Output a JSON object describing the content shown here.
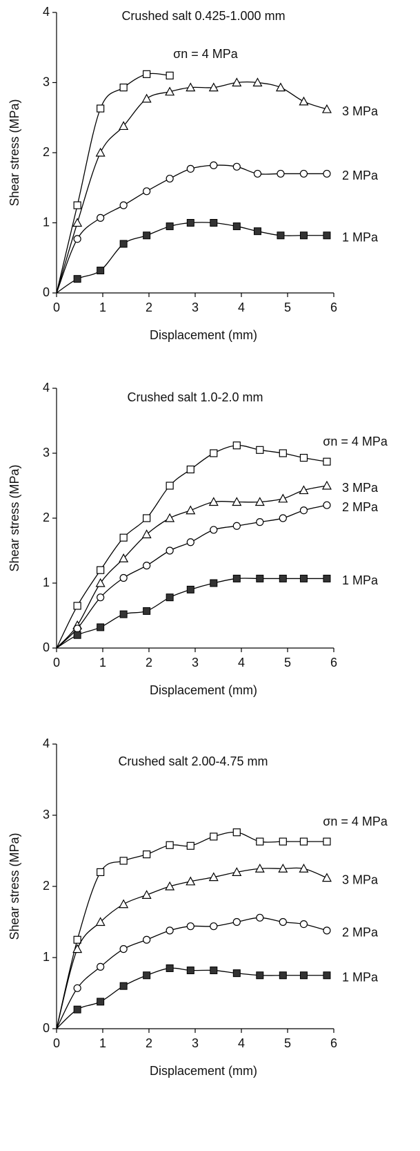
{
  "chart_data": [
    {
      "type": "line",
      "title": "Crushed salt 0.425-1.000 mm",
      "xlabel": "Displacement (mm)",
      "ylabel": "Shear stress (MPa)",
      "x": [
        0,
        0.45,
        0.95,
        1.45,
        1.95,
        2.45,
        2.9,
        3.4,
        3.9,
        4.35,
        4.85,
        5.35,
        5.85
      ],
      "xlim": [
        0,
        6
      ],
      "xticks": [
        0,
        1,
        2,
        3,
        4,
        5,
        6
      ],
      "ylim": [
        0,
        4
      ],
      "yticks": [
        0,
        1,
        2,
        3,
        4
      ],
      "series": [
        {
          "name": "σn = 4 MPa",
          "marker": "square-open",
          "color": "#000000",
          "values": [
            0,
            1.25,
            2.63,
            2.93,
            3.12,
            3.1,
            null,
            null,
            null,
            null,
            null,
            null,
            null
          ]
        },
        {
          "name": "3 MPa",
          "marker": "triangle-open",
          "color": "#000000",
          "values": [
            0,
            1.0,
            2.0,
            2.38,
            2.77,
            2.87,
            2.93,
            2.93,
            3.0,
            3.0,
            2.93,
            2.73,
            2.62
          ]
        },
        {
          "name": "2 MPa",
          "marker": "circle-open",
          "color": "#000000",
          "values": [
            0,
            0.77,
            1.07,
            1.25,
            1.45,
            1.63,
            1.77,
            1.82,
            1.8,
            1.7,
            1.7,
            1.7,
            1.7
          ]
        },
        {
          "name": "1 MPa",
          "marker": "square-filled",
          "color": "#000000",
          "values": [
            0,
            0.2,
            0.32,
            0.7,
            0.82,
            0.95,
            1.0,
            1.0,
            0.95,
            0.88,
            0.82,
            0.82,
            0.82
          ]
        }
      ]
    },
    {
      "type": "line",
      "title": "Crushed salt 1.0-2.0 mm",
      "xlabel": "Displacement (mm)",
      "ylabel": "Shear stress (MPa)",
      "x": [
        0,
        0.45,
        0.95,
        1.45,
        1.95,
        2.45,
        2.9,
        3.4,
        3.9,
        4.4,
        4.9,
        5.35,
        5.85
      ],
      "xlim": [
        0,
        6
      ],
      "xticks": [
        0,
        1,
        2,
        3,
        4,
        5,
        6
      ],
      "ylim": [
        0,
        4
      ],
      "yticks": [
        0,
        1,
        2,
        3,
        4
      ],
      "series": [
        {
          "name": "σn = 4 MPa",
          "marker": "square-open",
          "color": "#000000",
          "values": [
            0,
            0.65,
            1.2,
            1.7,
            2.0,
            2.5,
            2.75,
            3.0,
            3.12,
            3.05,
            3.0,
            2.93,
            2.87
          ]
        },
        {
          "name": "3 MPa",
          "marker": "triangle-open",
          "color": "#000000",
          "values": [
            0,
            0.35,
            1.0,
            1.38,
            1.75,
            2.0,
            2.12,
            2.25,
            2.25,
            2.25,
            2.3,
            2.43,
            2.5
          ]
        },
        {
          "name": "2 MPa",
          "marker": "circle-open",
          "color": "#000000",
          "values": [
            0,
            0.3,
            0.78,
            1.08,
            1.27,
            1.5,
            1.63,
            1.82,
            1.88,
            1.94,
            2.0,
            2.12,
            2.2
          ]
        },
        {
          "name": "1 MPa",
          "marker": "square-filled",
          "color": "#000000",
          "values": [
            0,
            0.2,
            0.32,
            0.52,
            0.57,
            0.78,
            0.9,
            1.0,
            1.07,
            1.07,
            1.07,
            1.07,
            1.07
          ]
        }
      ]
    },
    {
      "type": "line",
      "title": "Crushed salt 2.00-4.75 mm",
      "xlabel": "Displacement (mm)",
      "ylabel": "Shear stress (MPa)",
      "x": [
        0,
        0.45,
        0.95,
        1.45,
        1.95,
        2.45,
        2.9,
        3.4,
        3.9,
        4.4,
        4.9,
        5.35,
        5.85
      ],
      "xlim": [
        0,
        6
      ],
      "xticks": [
        0,
        1,
        2,
        3,
        4,
        5,
        6
      ],
      "ylim": [
        0,
        4
      ],
      "yticks": [
        0,
        1,
        2,
        3,
        4
      ],
      "series": [
        {
          "name": "σn = 4 MPa",
          "marker": "square-open",
          "color": "#000000",
          "values": [
            0,
            1.25,
            2.2,
            2.36,
            2.45,
            2.58,
            2.57,
            2.7,
            2.76,
            2.63,
            2.63,
            2.63,
            2.63
          ]
        },
        {
          "name": "3 MPa",
          "marker": "triangle-open",
          "color": "#000000",
          "values": [
            0,
            1.12,
            1.5,
            1.75,
            1.88,
            2.0,
            2.07,
            2.13,
            2.2,
            2.25,
            2.25,
            2.25,
            2.12
          ]
        },
        {
          "name": "2 MPa",
          "marker": "circle-open",
          "color": "#000000",
          "values": [
            0,
            0.57,
            0.87,
            1.12,
            1.25,
            1.38,
            1.44,
            1.44,
            1.5,
            1.56,
            1.5,
            1.47,
            1.38
          ]
        },
        {
          "name": "1 MPa",
          "marker": "square-filled",
          "color": "#000000",
          "values": [
            0,
            0.27,
            0.38,
            0.6,
            0.75,
            0.85,
            0.82,
            0.82,
            0.78,
            0.75,
            0.75,
            0.75,
            0.75
          ]
        }
      ]
    }
  ]
}
